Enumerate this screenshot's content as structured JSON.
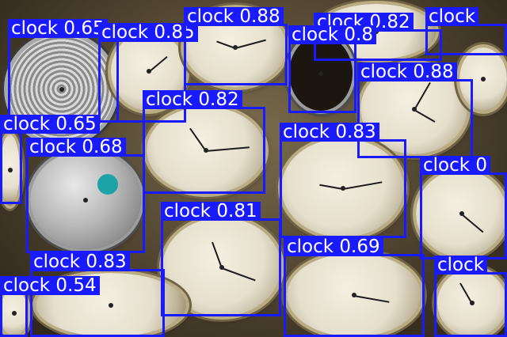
{
  "detections": [
    {
      "label": "clock 0.65"
    },
    {
      "label": "clock 0.85"
    },
    {
      "label": "clock 0.88"
    },
    {
      "label": "clock 0.82"
    },
    {
      "label": "clock 0.8"
    },
    {
      "label": "clock 0.88"
    },
    {
      "label": "clock 0.82"
    },
    {
      "label": "clock 0.65"
    },
    {
      "label": "clock 0.68"
    },
    {
      "label": "clock 0.83"
    },
    {
      "label": "clock 0.81"
    },
    {
      "label": "clock 0.69"
    },
    {
      "label": "clock 0.83"
    },
    {
      "label": "clock 0.54"
    },
    {
      "label": "clock"
    },
    {
      "label": "clock 0"
    },
    {
      "label": "clock"
    }
  ],
  "colors": {
    "box": "#1a1aff",
    "label_text": "#ffffff"
  }
}
